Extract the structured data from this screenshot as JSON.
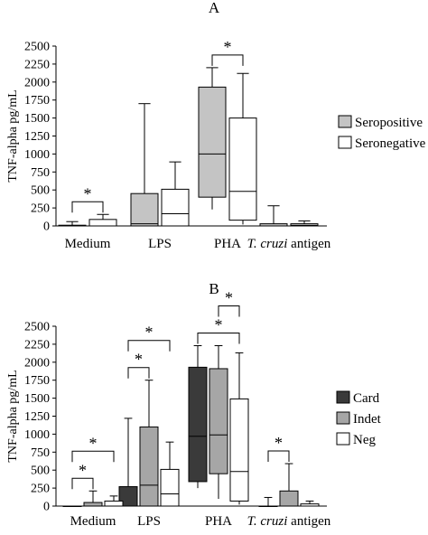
{
  "chart_data": [
    {
      "panel_label": "A",
      "type": "boxplot",
      "ylabel": "TNF-alpha pg/mL",
      "ylim": [
        0,
        2500
      ],
      "yticks": [
        0,
        250,
        500,
        750,
        1000,
        1250,
        1500,
        1750,
        2000,
        2250,
        2500
      ],
      "categories": [
        {
          "label": "Medium"
        },
        {
          "label": "LPS"
        },
        {
          "label": "PHA"
        },
        {
          "label_italic": "T. cruzi",
          "label_rest": " antigen"
        }
      ],
      "series": [
        {
          "name": "Seropositive",
          "fill": "#c4c4c4",
          "boxes": [
            {
              "min": 0,
              "q1": 0,
              "median": 0,
              "q3": 10,
              "max": 60
            },
            {
              "min": 0,
              "q1": 0,
              "median": 30,
              "q3": 450,
              "max": 1700
            },
            {
              "min": 230,
              "q1": 400,
              "median": 1000,
              "q3": 1930,
              "max": 2200
            },
            {
              "min": 0,
              "q1": 0,
              "median": 0,
              "q3": 30,
              "max": 280
            }
          ]
        },
        {
          "name": "Seronegative",
          "fill": "#ffffff",
          "boxes": [
            {
              "min": 0,
              "q1": 0,
              "median": 0,
              "q3": 90,
              "max": 160
            },
            {
              "min": 0,
              "q1": 0,
              "median": 170,
              "q3": 510,
              "max": 890
            },
            {
              "min": 20,
              "q1": 80,
              "median": 480,
              "q3": 1500,
              "max": 2120
            },
            {
              "min": 0,
              "q1": 0,
              "median": 10,
              "q3": 30,
              "max": 70
            }
          ]
        }
      ],
      "significance": [
        {
          "category": 0,
          "from_series": 0,
          "to_series": 1,
          "label": "*"
        },
        {
          "category": 2,
          "from_series": 0,
          "to_series": 1,
          "label": "*"
        }
      ],
      "legend_position": "right"
    },
    {
      "panel_label": "B",
      "type": "boxplot",
      "ylabel": "TNF-alpha pg/mL",
      "ylim": [
        0,
        2500
      ],
      "yticks": [
        0,
        250,
        500,
        750,
        1000,
        1250,
        1500,
        1750,
        2000,
        2250,
        2500
      ],
      "categories": [
        {
          "label": "Medium"
        },
        {
          "label": "LPS"
        },
        {
          "label": "PHA"
        },
        {
          "label_italic": "T. cruzi",
          "label_rest": " antigen"
        }
      ],
      "series": [
        {
          "name": "Card",
          "fill": "#3a3a3a",
          "boxes": [
            {
              "min": 0,
              "q1": 0,
              "median": 0,
              "q3": 0,
              "max": 0
            },
            {
              "min": 0,
              "q1": 0,
              "median": 0,
              "q3": 270,
              "max": 1220
            },
            {
              "min": 250,
              "q1": 340,
              "median": 970,
              "q3": 1930,
              "max": 2230
            },
            {
              "min": 0,
              "q1": 0,
              "median": 0,
              "q3": 0,
              "max": 120
            }
          ]
        },
        {
          "name": "Indet",
          "fill": "#a6a6a6",
          "boxes": [
            {
              "min": 0,
              "q1": 0,
              "median": 0,
              "q3": 50,
              "max": 210
            },
            {
              "min": 0,
              "q1": 0,
              "median": 290,
              "q3": 1100,
              "max": 1750
            },
            {
              "min": 100,
              "q1": 450,
              "median": 990,
              "q3": 1910,
              "max": 2230
            },
            {
              "min": 0,
              "q1": 0,
              "median": 0,
              "q3": 210,
              "max": 590
            }
          ]
        },
        {
          "name": "Neg",
          "fill": "#ffffff",
          "boxes": [
            {
              "min": 0,
              "q1": 0,
              "median": 0,
              "q3": 70,
              "max": 140
            },
            {
              "min": 0,
              "q1": 0,
              "median": 170,
              "q3": 510,
              "max": 890
            },
            {
              "min": 20,
              "q1": 70,
              "median": 480,
              "q3": 1490,
              "max": 2130
            },
            {
              "min": 0,
              "q1": 0,
              "median": 0,
              "q3": 30,
              "max": 70
            }
          ]
        }
      ],
      "significance": [
        {
          "category": 0,
          "from_series": 0,
          "to_series": 1,
          "label": "*"
        },
        {
          "category": 0,
          "from_series": 0,
          "to_series": 2,
          "label": "*"
        },
        {
          "category": 1,
          "from_series": 0,
          "to_series": 1,
          "label": "*"
        },
        {
          "category": 1,
          "from_series": 0,
          "to_series": 2,
          "label": "*"
        },
        {
          "category": 2,
          "from_series": 0,
          "to_series": 2,
          "label": "*"
        },
        {
          "category": 2,
          "from_series": 1,
          "to_series": 2,
          "label": "*"
        },
        {
          "category": 3,
          "from_series": 0,
          "to_series": 1,
          "label": "*"
        }
      ],
      "legend_position": "right"
    }
  ]
}
